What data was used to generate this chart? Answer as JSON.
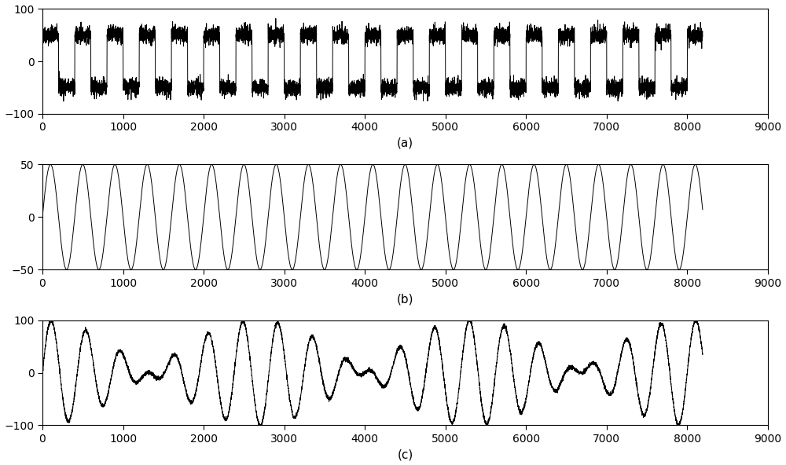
{
  "n_samples": 8192,
  "xlabel_max": 9000,
  "xticks": [
    0,
    1000,
    2000,
    3000,
    4000,
    5000,
    6000,
    7000,
    8000,
    9000
  ],
  "panel_a": {
    "ylim": [
      -100,
      100
    ],
    "yticks": [
      -100,
      0,
      100
    ],
    "label": "(a)",
    "square_amplitude": 50,
    "square_period": 400,
    "noise_std": 8
  },
  "panel_b": {
    "ylim": [
      -50,
      50
    ],
    "yticks": [
      -50,
      0,
      50
    ],
    "label": "(b)",
    "sine_amplitude": 50,
    "sine_freq_cycles": 20
  },
  "panel_c": {
    "ylim": [
      -100,
      100
    ],
    "yticks": [
      -100,
      0,
      100
    ],
    "label": "(c)",
    "sine1_amplitude": 50,
    "sine1_freq_cycles": 20,
    "sine2_amplitude": 50,
    "sine2_freq_cycles": 17,
    "noise_std": 2
  },
  "line_color": "#000000",
  "line_width": 0.7,
  "bg_color": "#ffffff",
  "label_fontsize": 11,
  "tick_fontsize": 10,
  "spine_linewidth": 0.8
}
